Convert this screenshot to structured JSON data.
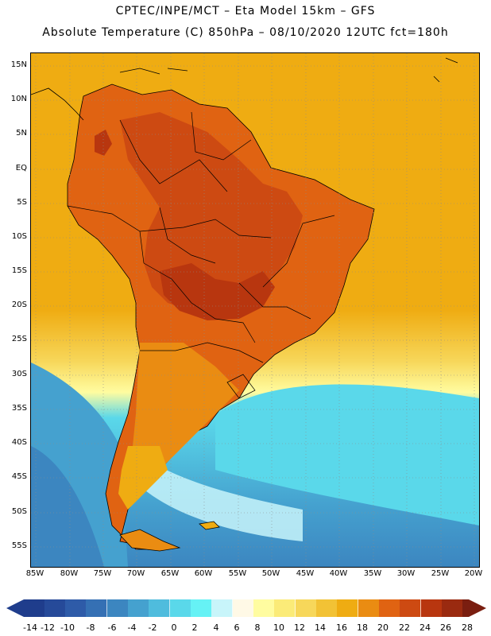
{
  "header": {
    "line1": "CPTEC/INPE/MCT  –   Eta Model 15km  –  GFS",
    "line2": "Absolute Temperature (C) 850hPa – 08/10/2020 12UTC fct=180h"
  },
  "latitude_labels": [
    "15N",
    "10N",
    "5N",
    "EQ",
    "5S",
    "10S",
    "15S",
    "20S",
    "25S",
    "30S",
    "35S",
    "40S",
    "45S",
    "50S",
    "55S"
  ],
  "longitude_labels": [
    "85W",
    "80W",
    "75W",
    "70W",
    "65W",
    "60W",
    "55W",
    "50W",
    "45W",
    "40W",
    "35W",
    "30W",
    "25W",
    "20W"
  ],
  "colorbar": {
    "labels": [
      "-14",
      "-12",
      "-10",
      "-8",
      "-6",
      "-4",
      "-2",
      "0",
      "2",
      "4",
      "6",
      "8",
      "10",
      "12",
      "14",
      "16",
      "18",
      "20",
      "22",
      "24",
      "26",
      "28"
    ],
    "colors": [
      "#1f3d8c",
      "#264a99",
      "#2e5ba8",
      "#3570b4",
      "#3c86c0",
      "#45a1cf",
      "#4fbcdd",
      "#5ad8ea",
      "#66f2f5",
      "#c8f5fa",
      "#fff9e6",
      "#fffca0",
      "#fbeb78",
      "#f7d75a",
      "#f2c235",
      "#efac12",
      "#ea8c12",
      "#e06312",
      "#cd4a12",
      "#b8360f",
      "#9a2a10",
      "#7a1e10"
    ]
  },
  "map": {
    "palette": {
      "ocean_warm": "#efac12",
      "ocean_mid": "#f7d75a",
      "ocean_cool": "#fffca0",
      "ocean_cyan": "#5ad8ea",
      "ocean_cold": "#45a1cf",
      "ocean_colder": "#3c86c0",
      "land_warm": "#e06312",
      "land_hot": "#cd4a12",
      "land_hotter": "#b8360f",
      "line": "#000000",
      "grid": "#9a9a9a"
    }
  }
}
